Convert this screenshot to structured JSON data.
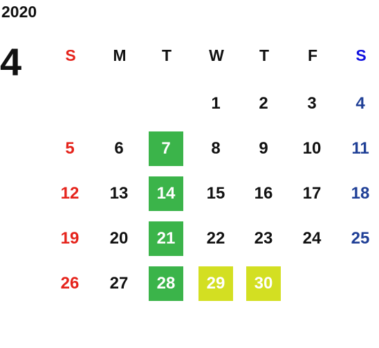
{
  "header": {
    "year": "2020",
    "month": "4"
  },
  "weekdays": [
    "S",
    "M",
    "T",
    "W",
    "T",
    "F",
    "S"
  ],
  "weeks": [
    [
      null,
      null,
      null,
      {
        "day": "1"
      },
      {
        "day": "2"
      },
      {
        "day": "3"
      },
      {
        "day": "4"
      }
    ],
    [
      {
        "day": "5"
      },
      {
        "day": "6"
      },
      {
        "day": "7",
        "bg": "#3bb44a"
      },
      {
        "day": "8"
      },
      {
        "day": "9"
      },
      {
        "day": "10"
      },
      {
        "day": "11"
      }
    ],
    [
      {
        "day": "12"
      },
      {
        "day": "13"
      },
      {
        "day": "14",
        "bg": "#3bb44a"
      },
      {
        "day": "15"
      },
      {
        "day": "16"
      },
      {
        "day": "17"
      },
      {
        "day": "18"
      }
    ],
    [
      {
        "day": "19"
      },
      {
        "day": "20"
      },
      {
        "day": "21",
        "bg": "#3bb44a"
      },
      {
        "day": "22"
      },
      {
        "day": "23"
      },
      {
        "day": "24"
      },
      {
        "day": "25"
      }
    ],
    [
      {
        "day": "26"
      },
      {
        "day": "27"
      },
      {
        "day": "28",
        "bg": "#3bb44a"
      },
      {
        "day": "29",
        "bg": "#d3df22"
      },
      {
        "day": "30",
        "bg": "#d3df22"
      },
      null,
      null
    ]
  ]
}
